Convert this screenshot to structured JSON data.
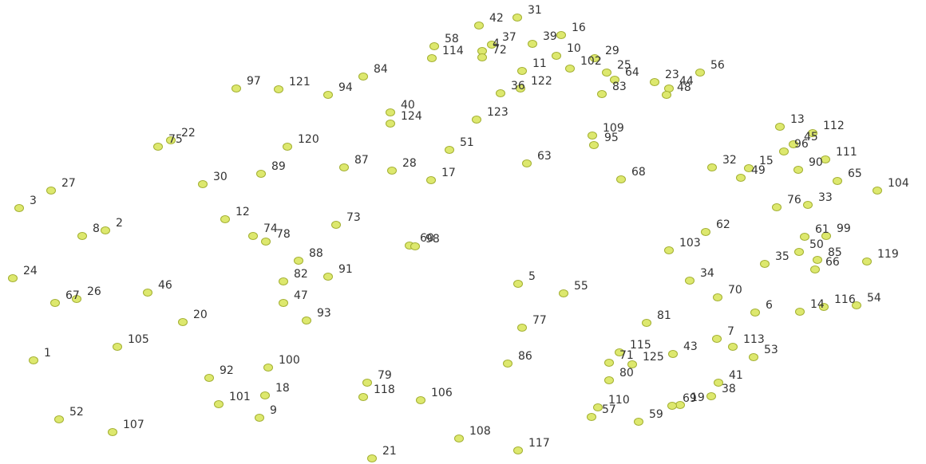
{
  "nodes": [
    {
      "label": "1"
    },
    {
      "label": "2"
    },
    {
      "label": "3"
    },
    {
      "label": "4"
    },
    {
      "label": "5"
    },
    {
      "label": "6"
    },
    {
      "label": "7"
    },
    {
      "label": "8"
    },
    {
      "label": "9"
    },
    {
      "label": "10"
    },
    {
      "label": "11"
    },
    {
      "label": "12"
    },
    {
      "label": "13"
    },
    {
      "label": "14"
    },
    {
      "label": "15"
    },
    {
      "label": "16"
    },
    {
      "label": "17"
    },
    {
      "label": "18"
    },
    {
      "label": "19"
    },
    {
      "label": "20"
    },
    {
      "label": "21"
    },
    {
      "label": "22"
    },
    {
      "label": "23"
    },
    {
      "label": "24"
    },
    {
      "label": "25"
    },
    {
      "label": "26"
    },
    {
      "label": "27"
    },
    {
      "label": "28"
    },
    {
      "label": "29"
    },
    {
      "label": "30"
    },
    {
      "label": "31"
    },
    {
      "label": "32"
    },
    {
      "label": "33"
    },
    {
      "label": "34"
    },
    {
      "label": "35"
    },
    {
      "label": "36"
    },
    {
      "label": "37"
    },
    {
      "label": "38"
    },
    {
      "label": "39"
    },
    {
      "label": "40"
    },
    {
      "label": "41"
    },
    {
      "label": "42"
    },
    {
      "label": "43"
    },
    {
      "label": "44"
    },
    {
      "label": "45"
    },
    {
      "label": "46"
    },
    {
      "label": "47"
    },
    {
      "label": "48"
    },
    {
      "label": "49"
    },
    {
      "label": "50"
    },
    {
      "label": "51"
    },
    {
      "label": "52"
    },
    {
      "label": "53"
    },
    {
      "label": "54"
    },
    {
      "label": "55"
    },
    {
      "label": "56"
    },
    {
      "label": "57"
    },
    {
      "label": "58"
    },
    {
      "label": "59"
    },
    {
      "label": "60"
    },
    {
      "label": "61"
    },
    {
      "label": "62"
    },
    {
      "label": "63"
    },
    {
      "label": "64"
    },
    {
      "label": "65"
    },
    {
      "label": "66"
    },
    {
      "label": "67"
    },
    {
      "label": "68"
    },
    {
      "label": "69"
    },
    {
      "label": "70"
    },
    {
      "label": "71"
    },
    {
      "label": "72"
    },
    {
      "label": "73"
    },
    {
      "label": "74"
    },
    {
      "label": "75"
    },
    {
      "label": "76"
    },
    {
      "label": "77"
    },
    {
      "label": "78"
    },
    {
      "label": "79"
    },
    {
      "label": "80"
    },
    {
      "label": "81"
    },
    {
      "label": "82"
    },
    {
      "label": "83"
    },
    {
      "label": "84"
    },
    {
      "label": "85"
    },
    {
      "label": "86"
    },
    {
      "label": "87"
    },
    {
      "label": "88"
    },
    {
      "label": "89"
    },
    {
      "label": "90"
    },
    {
      "label": "91"
    },
    {
      "label": "92"
    },
    {
      "label": "93"
    },
    {
      "label": "94"
    },
    {
      "label": "95"
    },
    {
      "label": "96"
    },
    {
      "label": "97"
    },
    {
      "label": "98"
    },
    {
      "label": "99"
    },
    {
      "label": "100"
    },
    {
      "label": "101"
    },
    {
      "label": "102"
    },
    {
      "label": "103"
    },
    {
      "label": "104"
    },
    {
      "label": "105"
    },
    {
      "label": "106"
    },
    {
      "label": "107"
    },
    {
      "label": "108"
    },
    {
      "label": "109"
    },
    {
      "label": "110"
    },
    {
      "label": "111"
    },
    {
      "label": "112"
    },
    {
      "label": "113"
    },
    {
      "label": "114"
    },
    {
      "label": "115"
    },
    {
      "label": "116"
    },
    {
      "label": "117"
    },
    {
      "label": "118"
    },
    {
      "label": "119"
    },
    {
      "label": "120"
    },
    {
      "label": "121"
    },
    {
      "label": "122"
    },
    {
      "label": "123"
    },
    {
      "label": "124"
    },
    {
      "label": "125"
    }
  ]
}
